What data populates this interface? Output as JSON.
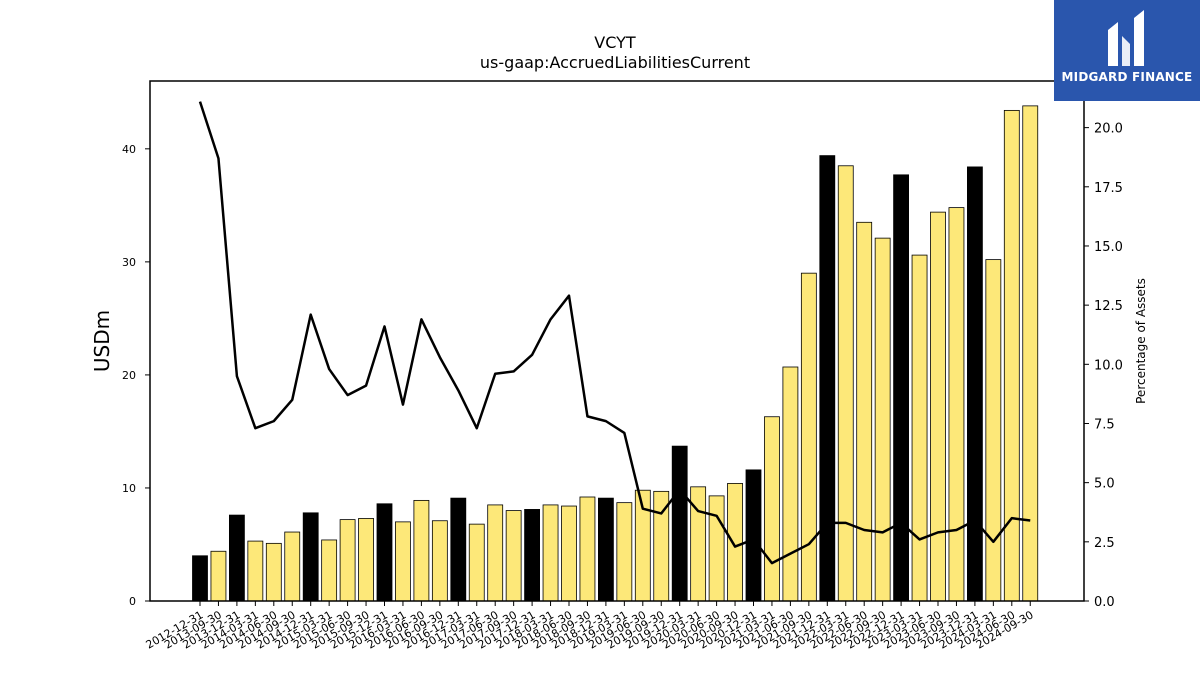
{
  "logo": {
    "text": "MIDGARD FINANCE"
  },
  "chart_data": {
    "type": "bar",
    "title": "VCYT",
    "subtitle": "us-gaap:AccruedLiabilitiesCurrent",
    "ylabel": "USDm",
    "y2label": "Percentage of Assets",
    "ylim": [
      0,
      46
    ],
    "y2lim": [
      0,
      21.97
    ],
    "yticks": [
      0,
      10,
      20,
      30,
      40
    ],
    "y2ticks": [
      "0.0",
      "2.5",
      "5.0",
      "7.5",
      "10.0",
      "12.5",
      "15.0",
      "17.5",
      "20.0"
    ],
    "colors": {
      "annual": "#000000",
      "quarterly": "#fde879",
      "line": "#000000"
    },
    "categories": [
      "2012-12-31",
      "2013-09-30",
      "2013-12-31",
      "2014-03-31",
      "2014-06-30",
      "2014-09-30",
      "2014-12-31",
      "2015-03-31",
      "2015-06-30",
      "2015-09-30",
      "2015-12-31",
      "2016-03-31",
      "2016-06-30",
      "2016-09-30",
      "2016-12-31",
      "2017-03-31",
      "2017-06-30",
      "2017-09-30",
      "2017-12-31",
      "2018-03-31",
      "2018-06-30",
      "2018-09-30",
      "2018-12-31",
      "2019-03-31",
      "2019-06-30",
      "2019-09-30",
      "2019-12-31",
      "2020-03-31",
      "2020-06-30",
      "2020-09-30",
      "2020-12-31",
      "2021-03-31",
      "2021-06-30",
      "2021-09-30",
      "2021-12-31",
      "2022-03-31",
      "2022-06-30",
      "2022-09-30",
      "2022-12-31",
      "2023-03-31",
      "2023-06-30",
      "2023-09-30",
      "2023-12-31",
      "2024-03-31",
      "2024-06-30",
      "2024-09-30"
    ],
    "values": [
      4.0,
      4.4,
      7.6,
      5.3,
      5.1,
      6.1,
      7.8,
      5.4,
      7.2,
      7.3,
      8.6,
      7.0,
      8.9,
      7.1,
      9.1,
      6.8,
      8.5,
      8.0,
      8.1,
      8.5,
      8.4,
      9.2,
      9.1,
      8.7,
      9.8,
      9.7,
      13.7,
      10.1,
      9.3,
      10.4,
      11.6,
      16.3,
      20.7,
      29.0,
      39.4,
      38.5,
      33.5,
      32.1,
      37.7,
      30.6,
      34.4,
      34.8,
      38.4,
      30.2,
      43.4,
      43.8
    ],
    "annual": [
      true,
      false,
      true,
      false,
      false,
      false,
      true,
      false,
      false,
      false,
      true,
      false,
      false,
      false,
      true,
      false,
      false,
      false,
      true,
      false,
      false,
      false,
      true,
      false,
      false,
      false,
      true,
      false,
      false,
      false,
      true,
      false,
      false,
      false,
      true,
      false,
      false,
      false,
      true,
      false,
      false,
      false,
      true,
      false,
      false,
      false
    ],
    "line_values": [
      21.1,
      18.7,
      9.5,
      7.3,
      7.6,
      8.5,
      12.1,
      9.8,
      8.7,
      9.1,
      11.6,
      8.3,
      11.9,
      10.3,
      8.9,
      7.3,
      9.6,
      9.7,
      10.4,
      11.9,
      12.9,
      7.8,
      7.6,
      7.1,
      3.9,
      3.7,
      4.7,
      3.8,
      3.6,
      2.3,
      2.6,
      1.6,
      2.0,
      2.4,
      3.3,
      3.3,
      3.0,
      2.9,
      3.3,
      2.6,
      2.9,
      3.0,
      3.4,
      2.5,
      3.5,
      3.4
    ]
  }
}
